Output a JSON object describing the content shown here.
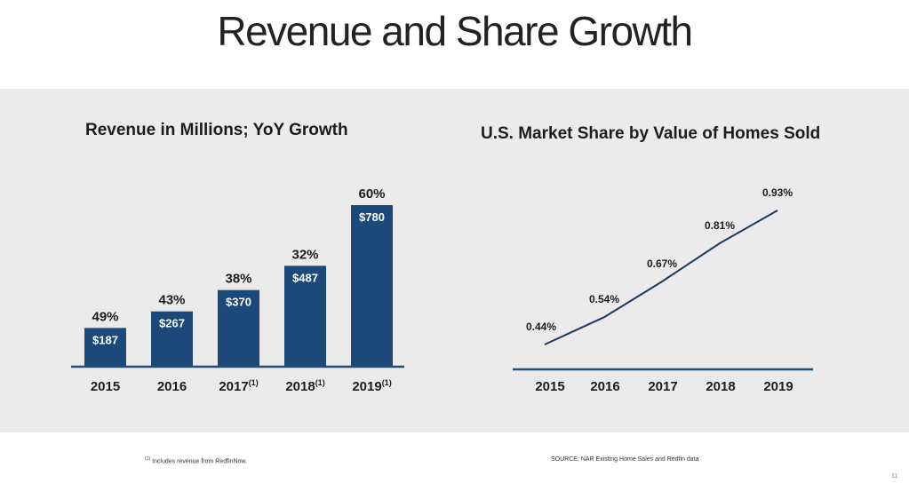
{
  "page": {
    "title": "Revenue and Share Growth",
    "footnote_marker": "(1)",
    "footnote": "Includes revenue from RedfinNow.",
    "source": "SOURCE: NAR Existing Home Sales and Redfin data",
    "page_number": "11"
  },
  "colors": {
    "bar": "#1b4a7a",
    "line": "#1b3a62",
    "axis": "#1f4e79",
    "panel": "#ebebeb"
  },
  "chart_data": [
    {
      "type": "bar",
      "title": "Revenue in Millions; YoY Growth",
      "categories": [
        "2015",
        "2016",
        "2017",
        "2018",
        "2019"
      ],
      "category_superscripts": [
        "",
        "",
        "(1)",
        "(1)",
        "(1)"
      ],
      "values": [
        187,
        267,
        370,
        487,
        780
      ],
      "value_labels": [
        "$187",
        "$267",
        "$370",
        "$487",
        "$780"
      ],
      "growth_labels": [
        "49%",
        "43%",
        "38%",
        "32%",
        "60%"
      ],
      "ylim": [
        0,
        780
      ],
      "grid": false
    },
    {
      "type": "line",
      "title": "U.S. Market Share by Value of Homes Sold",
      "x": [
        "2015",
        "2016",
        "2017",
        "2018",
        "2019"
      ],
      "values": [
        0.44,
        0.54,
        0.67,
        0.81,
        0.93
      ],
      "value_labels": [
        "0.44%",
        "0.54%",
        "0.67%",
        "0.81%",
        "0.93%"
      ],
      "grid": false
    }
  ]
}
